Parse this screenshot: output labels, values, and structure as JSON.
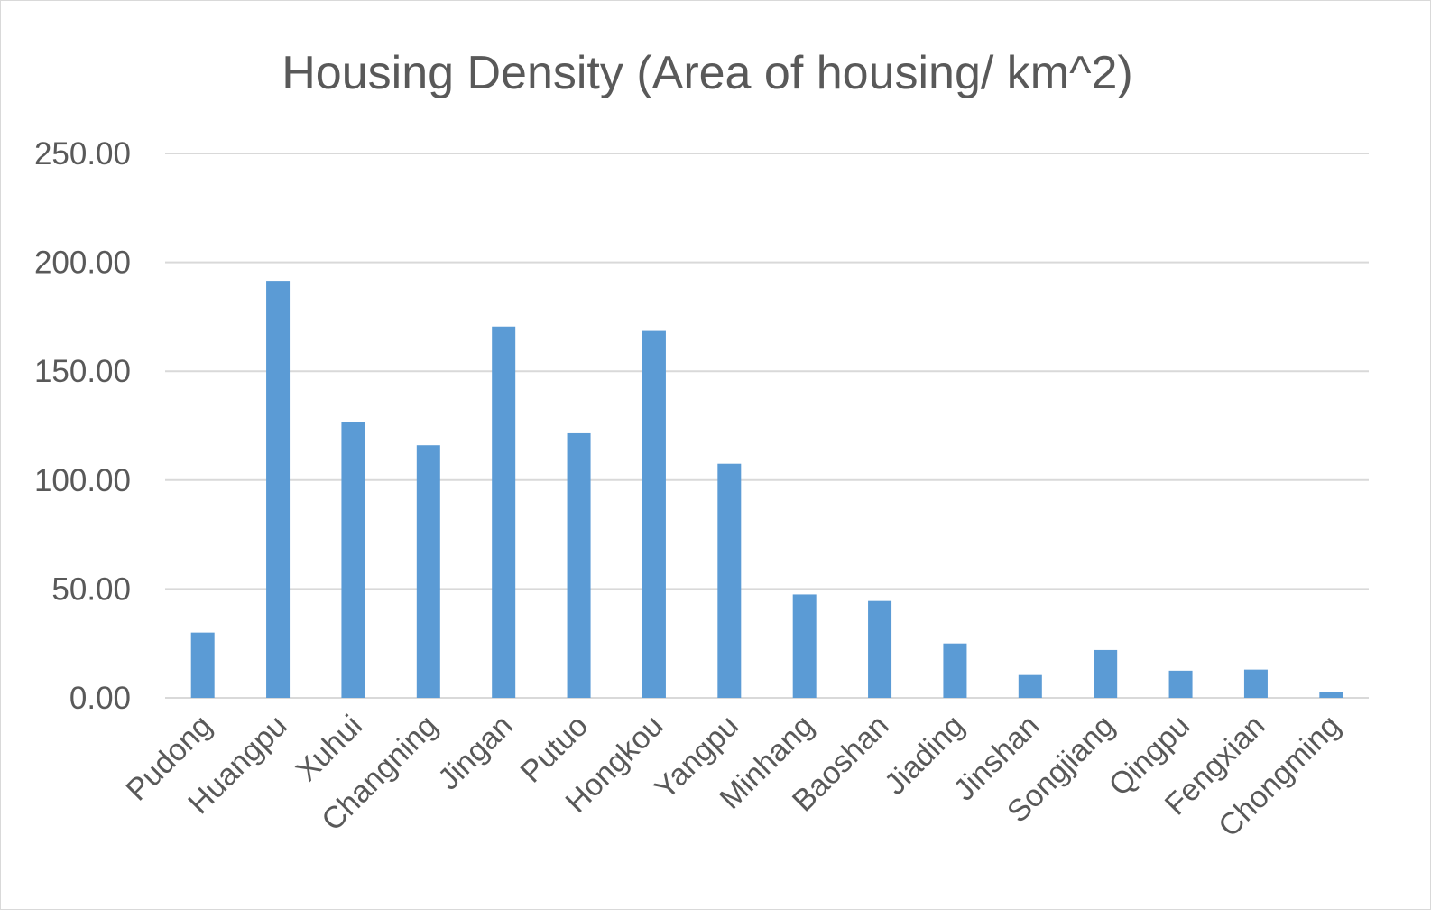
{
  "chart_data": {
    "type": "bar",
    "title": "Housing Density (Area of housing/ km^2)",
    "xlabel": "",
    "ylabel": "",
    "categories": [
      "Pudong",
      "Huangpu",
      "Xuhui",
      "Changning",
      "Jingan",
      "Putuo",
      "Hongkou",
      "Yangpu",
      "Minhang",
      "Baoshan",
      "Jiading",
      "Jinshan",
      "Songjiang",
      "Qingpu",
      "Fengxian",
      "Chongming"
    ],
    "values": [
      30,
      191.5,
      126.5,
      116,
      170.5,
      121.5,
      168.5,
      107.5,
      47.5,
      44.5,
      25,
      10.5,
      22,
      12.5,
      13,
      2.5
    ],
    "ylim": [
      0,
      250
    ],
    "yticks": [
      "0.00",
      "50.00",
      "100.00",
      "150.00",
      "200.00",
      "250.00"
    ],
    "grid": true,
    "legend": "none",
    "bar_color": "#5b9bd5"
  }
}
